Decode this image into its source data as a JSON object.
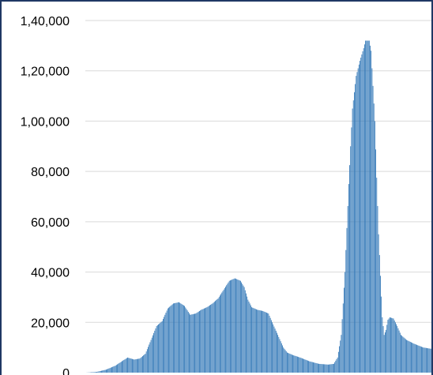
{
  "chart_data": {
    "type": "bar",
    "title": "",
    "xlabel": "",
    "ylabel": "",
    "ylim": [
      0,
      140000
    ],
    "y_ticks": [
      0,
      20000,
      40000,
      60000,
      80000,
      100000,
      120000,
      140000
    ],
    "y_tick_labels": [
      "0",
      "20,000",
      "40,000",
      "60,000",
      "80,000",
      "1,00,000",
      "1,20,000",
      "1,40,000"
    ],
    "grid": true,
    "bar_color": "#2e75b6",
    "bar_edge_color": "#1f4e79",
    "keyframes": [
      [
        0,
        0
      ],
      [
        12,
        300
      ],
      [
        22,
        1200
      ],
      [
        32,
        2800
      ],
      [
        40,
        4800
      ],
      [
        45,
        6000
      ],
      [
        52,
        5200
      ],
      [
        58,
        5600
      ],
      [
        64,
        7500
      ],
      [
        70,
        13000
      ],
      [
        76,
        18500
      ],
      [
        82,
        20500
      ],
      [
        88,
        25500
      ],
      [
        94,
        27500
      ],
      [
        100,
        28000
      ],
      [
        106,
        26500
      ],
      [
        112,
        23000
      ],
      [
        118,
        23500
      ],
      [
        124,
        25000
      ],
      [
        130,
        26000
      ],
      [
        136,
        27500
      ],
      [
        142,
        29500
      ],
      [
        148,
        33000
      ],
      [
        154,
        36500
      ],
      [
        160,
        37500
      ],
      [
        166,
        36500
      ],
      [
        170,
        34000
      ],
      [
        174,
        29000
      ],
      [
        178,
        26000
      ],
      [
        184,
        25000
      ],
      [
        190,
        24500
      ],
      [
        196,
        23500
      ],
      [
        200,
        20000
      ],
      [
        206,
        15000
      ],
      [
        212,
        10000
      ],
      [
        216,
        8000
      ],
      [
        222,
        7000
      ],
      [
        230,
        6000
      ],
      [
        240,
        4500
      ],
      [
        250,
        3500
      ],
      [
        260,
        3200
      ],
      [
        266,
        3500
      ],
      [
        270,
        6000
      ],
      [
        274,
        15000
      ],
      [
        278,
        40000
      ],
      [
        282,
        75000
      ],
      [
        286,
        105000
      ],
      [
        290,
        118000
      ],
      [
        294,
        124000
      ],
      [
        298,
        129000
      ],
      [
        300,
        132000
      ],
      [
        304,
        132000
      ],
      [
        306,
        128000
      ],
      [
        310,
        100000
      ],
      [
        314,
        55000
      ],
      [
        318,
        22000
      ],
      [
        320,
        15000
      ],
      [
        322,
        17000
      ],
      [
        324,
        21000
      ],
      [
        326,
        22000
      ],
      [
        330,
        21500
      ],
      [
        334,
        18500
      ],
      [
        338,
        15000
      ],
      [
        344,
        13000
      ],
      [
        352,
        11500
      ],
      [
        362,
        10000
      ],
      [
        370,
        9500
      ]
    ]
  }
}
